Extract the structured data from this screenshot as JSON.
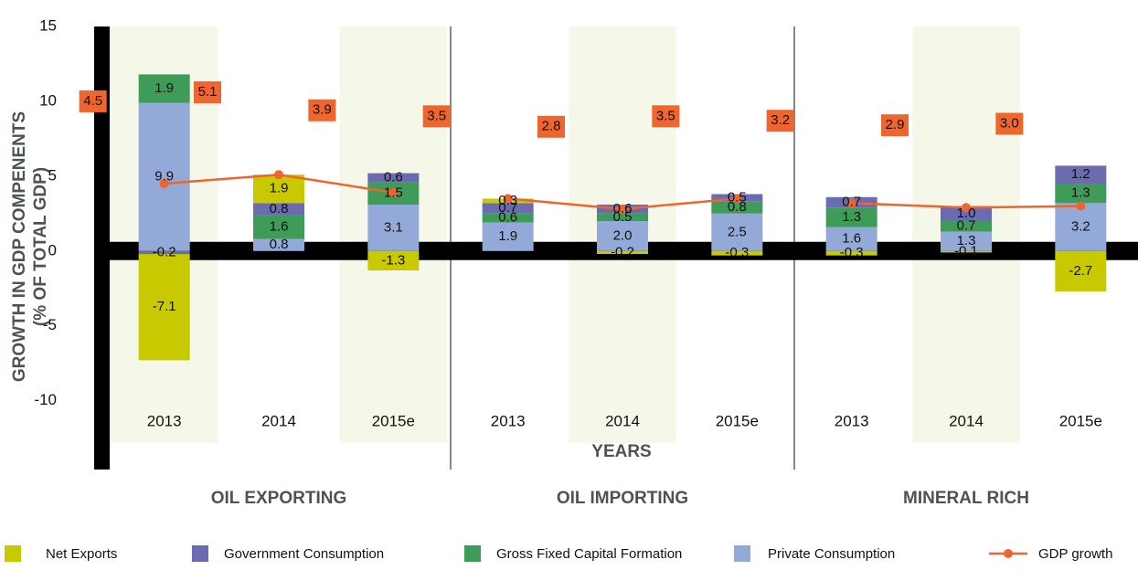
{
  "chart_data": {
    "type": "stacked_bar_line",
    "y_label_lines": [
      "GROWTH IN GDP COMPENENTS",
      "(% OF TOTAL GDP)"
    ],
    "x_label": "YEARS",
    "groups": [
      "OIL EXPORTING",
      "OIL IMPORTING",
      "MINERAL RICH"
    ],
    "categories": [
      "2013",
      "2014",
      "2015e",
      "2013",
      "2014",
      "2015e",
      "2013",
      "2014",
      "2015e"
    ],
    "ylim": [
      -14.6,
      15
    ],
    "yticks": [
      -10,
      -5,
      0,
      5,
      10,
      15
    ],
    "series": [
      {
        "name": "Private Consumption",
        "color": "#93aad8",
        "values": [
          9.9,
          0.8,
          3.1,
          1.9,
          2.0,
          2.5,
          1.6,
          1.3,
          3.2
        ],
        "value_labels": [
          "9.9",
          "0.8",
          "3.1",
          "1.9",
          "2.0",
          "2.5",
          "1.6",
          "1.3",
          "3.2"
        ]
      },
      {
        "name": "Gross Fixed Capital Formation",
        "color": "#3f9b58",
        "values": [
          1.9,
          1.6,
          1.5,
          0.6,
          0.5,
          0.8,
          1.3,
          0.7,
          1.3
        ],
        "value_labels": [
          "1.9",
          "1.6",
          "1.5",
          "0.6",
          "0.5",
          "0.8",
          "1.3",
          "0.7",
          "1.3"
        ]
      },
      {
        "name": "Government Consumption",
        "color": "#6b6bb0",
        "values": [
          -0.2,
          0.8,
          0.6,
          0.7,
          0.6,
          0.5,
          0.7,
          1.0,
          1.2
        ],
        "value_labels": [
          "-0.2",
          "0.8",
          "0.6",
          "0.7",
          "0.6",
          "0.5",
          "0.7",
          "1.0",
          "1.2"
        ]
      },
      {
        "name": "Net Exports",
        "color": "#c9c900",
        "values": [
          -7.1,
          1.9,
          -1.3,
          0.3,
          -0.2,
          -0.3,
          -0.3,
          -0.1,
          -2.7
        ],
        "value_labels": [
          "-7.1",
          "1.9",
          "-1.3",
          "0.3",
          "-0.2",
          "-0.3",
          "-0.3",
          "-0.1",
          "-2.7"
        ]
      }
    ],
    "line_series": {
      "name": "GDP growth",
      "color": "#f0642d",
      "values": [
        4.5,
        5.1,
        3.9,
        3.5,
        2.8,
        3.5,
        3.2,
        2.9,
        3.0
      ],
      "value_labels": [
        "4.5",
        "5.1",
        "3.9",
        "3.5",
        "2.8",
        "3.5",
        "3.2",
        "2.9",
        "3.0"
      ]
    }
  }
}
